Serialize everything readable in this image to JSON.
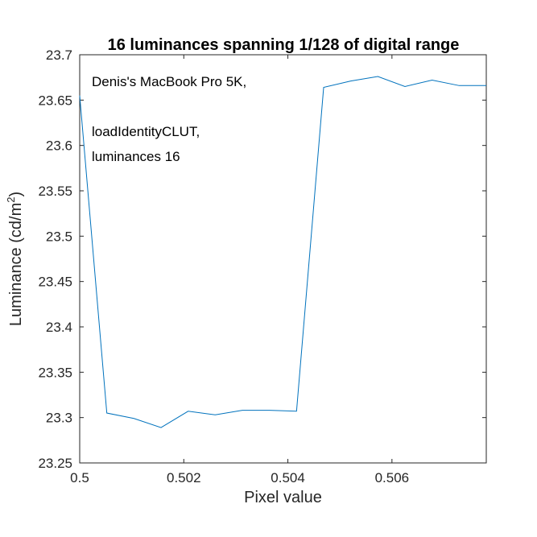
{
  "chart_data": {
    "type": "line",
    "title": "16 luminances spanning 1/128 of digital range",
    "xlabel": "Pixel value",
    "ylabel_main": "Luminance (cd/m",
    "ylabel_sup": "2",
    "ylabel_close": ")",
    "xlim": [
      0.5,
      0.5078125
    ],
    "ylim": [
      23.25,
      23.7
    ],
    "x_ticks": [
      0.5,
      0.502,
      0.504,
      0.506
    ],
    "x_tick_labels": [
      "0.5",
      "0.502",
      "0.504",
      "0.506"
    ],
    "y_ticks": [
      23.25,
      23.3,
      23.35,
      23.4,
      23.45,
      23.5,
      23.55,
      23.6,
      23.65,
      23.7
    ],
    "y_tick_labels": [
      "23.25",
      "23.3",
      "23.35",
      "23.4",
      "23.45",
      "23.5",
      "23.55",
      "23.6",
      "23.65",
      "23.7"
    ],
    "annotation_lines": [
      "Denis's MacBook Pro 5K,",
      "",
      "loadIdentityCLUT,",
      "luminances 16"
    ],
    "series": [
      {
        "color": "#0072BD",
        "x": [
          0.5,
          0.50052083,
          0.50104167,
          0.5015625,
          0.50208333,
          0.50260417,
          0.503125,
          0.50364583,
          0.50416667,
          0.5046875,
          0.50520833,
          0.50572917,
          0.50625,
          0.50677083,
          0.50729167,
          0.5078125
        ],
        "y": [
          23.655,
          23.305,
          23.299,
          23.289,
          23.307,
          23.303,
          23.308,
          23.308,
          23.307,
          23.664,
          23.671,
          23.676,
          23.665,
          23.672,
          23.666,
          23.666
        ]
      }
    ],
    "grid": false,
    "box": true
  }
}
